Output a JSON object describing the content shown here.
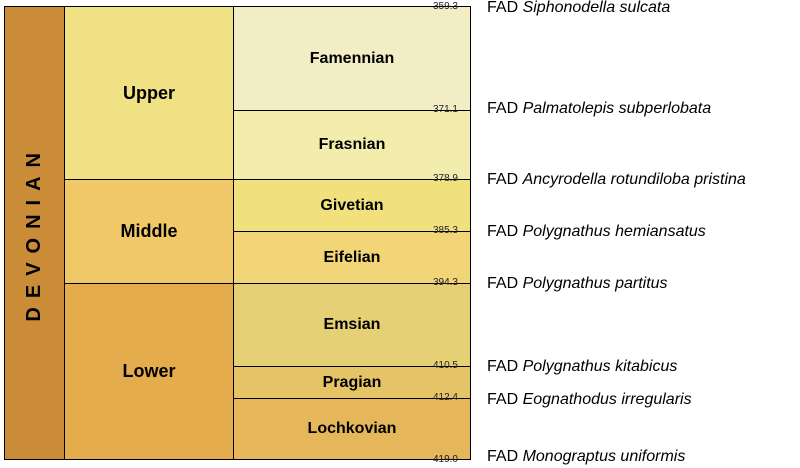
{
  "period": {
    "label": "DEVONIAN",
    "color": "#CB8C37"
  },
  "epochs": [
    {
      "label": "Upper",
      "color": "#F1E185"
    },
    {
      "label": "Middle",
      "color": "#F1C868"
    },
    {
      "label": "Lower",
      "color": "#E5AC4D"
    }
  ],
  "stages": [
    {
      "label": "Famennian",
      "color": "#F2EDC5"
    },
    {
      "label": "Frasnian",
      "color": "#F2EDAD"
    },
    {
      "label": "Givetian",
      "color": "#F1E17D"
    },
    {
      "label": "Eifelian",
      "color": "#F1D576"
    },
    {
      "label": "Emsian",
      "color": "#E5D075"
    },
    {
      "label": "Pragian",
      "color": "#E5C468"
    },
    {
      "label": "Lochkovian",
      "color": "#E5B75A"
    }
  ],
  "boundaries": [
    {
      "age": "359.3",
      "fad_prefix": "FAD",
      "fad_taxon": "Siphonodella sulcata"
    },
    {
      "age": "371.1",
      "fad_prefix": "FAD",
      "fad_taxon": "Palmatolepis subperlobata"
    },
    {
      "age": "378.9",
      "fad_prefix": "FAD",
      "fad_taxon": "Ancyrodella rotundiloba pristina"
    },
    {
      "age": "385.3",
      "fad_prefix": "FAD",
      "fad_taxon": "Polygnathus hemiansatus"
    },
    {
      "age": "394.3",
      "fad_prefix": "FAD",
      "fad_taxon": "Polygnathus partitus"
    },
    {
      "age": "410.5",
      "fad_prefix": "FAD",
      "fad_taxon": "Polygnathus kitabicus"
    },
    {
      "age": "412.4",
      "fad_prefix": "FAD",
      "fad_taxon": "Eognathodus irregularis"
    },
    {
      "age": "419.0",
      "fad_prefix": "FAD",
      "fad_taxon": "Monograptus uniformis"
    }
  ]
}
